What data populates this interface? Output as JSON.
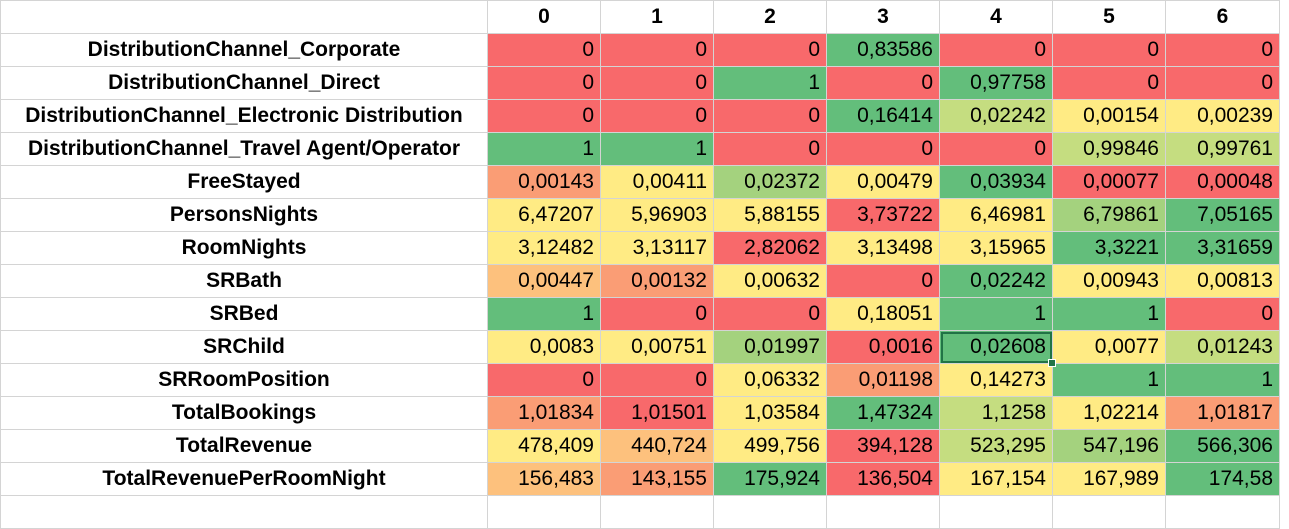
{
  "columns": [
    "0",
    "1",
    "2",
    "3",
    "4",
    "5",
    "6"
  ],
  "colors": {
    "red": "#f8696b",
    "green": "#63be7b",
    "yellow": "#ffeb84",
    "orange": "#fa9d75",
    "light_orange": "#fdc17d",
    "yellow_green": "#c5dd80",
    "light_green": "#a4d27e",
    "gridline": "#d4d4d4",
    "selection": "#217346"
  },
  "rows": [
    {
      "label": "DistributionChannel_Corporate",
      "cells": [
        "0",
        "0",
        "0",
        "0,83586",
        "0",
        "0",
        "0"
      ],
      "fills": [
        "red",
        "red",
        "red",
        "green",
        "red",
        "red",
        "red"
      ]
    },
    {
      "label": "DistributionChannel_Direct",
      "cells": [
        "0",
        "0",
        "1",
        "0",
        "0,97758",
        "0",
        "0"
      ],
      "fills": [
        "red",
        "red",
        "green",
        "red",
        "green",
        "red",
        "red"
      ]
    },
    {
      "label": "DistributionChannel_Electronic Distribution",
      "cells": [
        "0",
        "0",
        "0",
        "0,16414",
        "0,02242",
        "0,00154",
        "0,00239"
      ],
      "fills": [
        "red",
        "red",
        "red",
        "green",
        "yellow_green",
        "yellow",
        "yellow"
      ]
    },
    {
      "label": "DistributionChannel_Travel Agent/Operator",
      "cells": [
        "1",
        "1",
        "0",
        "0",
        "0",
        "0,99846",
        "0,99761"
      ],
      "fills": [
        "green",
        "green",
        "red",
        "red",
        "red",
        "yellow_green",
        "yellow_green"
      ]
    },
    {
      "label": "FreeStayed",
      "cells": [
        "0,00143",
        "0,00411",
        "0,02372",
        "0,00479",
        "0,03934",
        "0,00077",
        "0,00048"
      ],
      "fills": [
        "orange",
        "yellow",
        "light_green",
        "yellow",
        "green",
        "red",
        "red"
      ]
    },
    {
      "label": "PersonsNights",
      "cells": [
        "6,47207",
        "5,96903",
        "5,88155",
        "3,73722",
        "6,46981",
        "6,79861",
        "7,05165"
      ],
      "fills": [
        "yellow",
        "yellow",
        "yellow",
        "red",
        "yellow",
        "light_green",
        "green"
      ]
    },
    {
      "label": "RoomNights",
      "cells": [
        "3,12482",
        "3,13117",
        "2,82062",
        "3,13498",
        "3,15965",
        "3,3221",
        "3,31659"
      ],
      "fills": [
        "yellow",
        "yellow",
        "red",
        "yellow",
        "yellow",
        "green",
        "green"
      ]
    },
    {
      "label": "SRBath",
      "cells": [
        "0,00447",
        "0,00132",
        "0,00632",
        "0",
        "0,02242",
        "0,00943",
        "0,00813"
      ],
      "fills": [
        "light_orange",
        "orange",
        "yellow",
        "red",
        "green",
        "yellow",
        "yellow"
      ]
    },
    {
      "label": "SRBed",
      "cells": [
        "1",
        "0",
        "0",
        "0,18051",
        "1",
        "1",
        "0"
      ],
      "fills": [
        "green",
        "red",
        "red",
        "yellow",
        "green",
        "green",
        "red"
      ]
    },
    {
      "label": "SRChild",
      "cells": [
        "0,0083",
        "0,00751",
        "0,01997",
        "0,0016",
        "0,02608",
        "0,0077",
        "0,01243"
      ],
      "fills": [
        "yellow",
        "yellow",
        "light_green",
        "red",
        "green",
        "yellow",
        "yellow_green"
      ]
    },
    {
      "label": "SRRoomPosition",
      "cells": [
        "0",
        "0",
        "0,06332",
        "0,01198",
        "0,14273",
        "1",
        "1"
      ],
      "fills": [
        "red",
        "red",
        "yellow",
        "orange",
        "yellow",
        "green",
        "green"
      ]
    },
    {
      "label": "TotalBookings",
      "cells": [
        "1,01834",
        "1,01501",
        "1,03584",
        "1,47324",
        "1,1258",
        "1,02214",
        "1,01817"
      ],
      "fills": [
        "orange",
        "red",
        "yellow",
        "green",
        "yellow_green",
        "yellow",
        "orange"
      ]
    },
    {
      "label": "TotalRevenue",
      "cells": [
        "478,409",
        "440,724",
        "499,756",
        "394,128",
        "523,295",
        "547,196",
        "566,306"
      ],
      "fills": [
        "yellow",
        "light_orange",
        "yellow",
        "red",
        "yellow_green",
        "light_green",
        "green"
      ]
    },
    {
      "label": "TotalRevenuePerRoomNight",
      "cells": [
        "156,483",
        "143,155",
        "175,924",
        "136,504",
        "167,154",
        "167,989",
        "174,58"
      ],
      "fills": [
        "light_orange",
        "orange",
        "green",
        "red",
        "yellow",
        "yellow",
        "green"
      ]
    }
  ],
  "selected_cell": {
    "row": 9,
    "col": 4
  }
}
